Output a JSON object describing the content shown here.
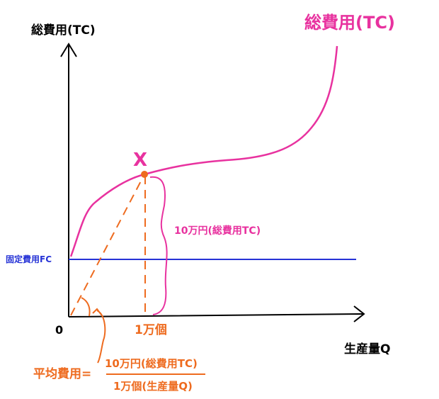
{
  "y_axis_label": "総費用(TC)",
  "curve_label": "総費用(TC)",
  "point_label": "X",
  "brace_label": "10万円(総費用TC)",
  "fc_label": "固定費用FC",
  "origin_label": "0",
  "x_point_label": "1万個",
  "x_axis_label": "生産量Q",
  "formula": {
    "lhs": "平均費用=",
    "numerator": "10万円(総費用TC)",
    "denominator": "1万個(生産量Q)"
  }
}
